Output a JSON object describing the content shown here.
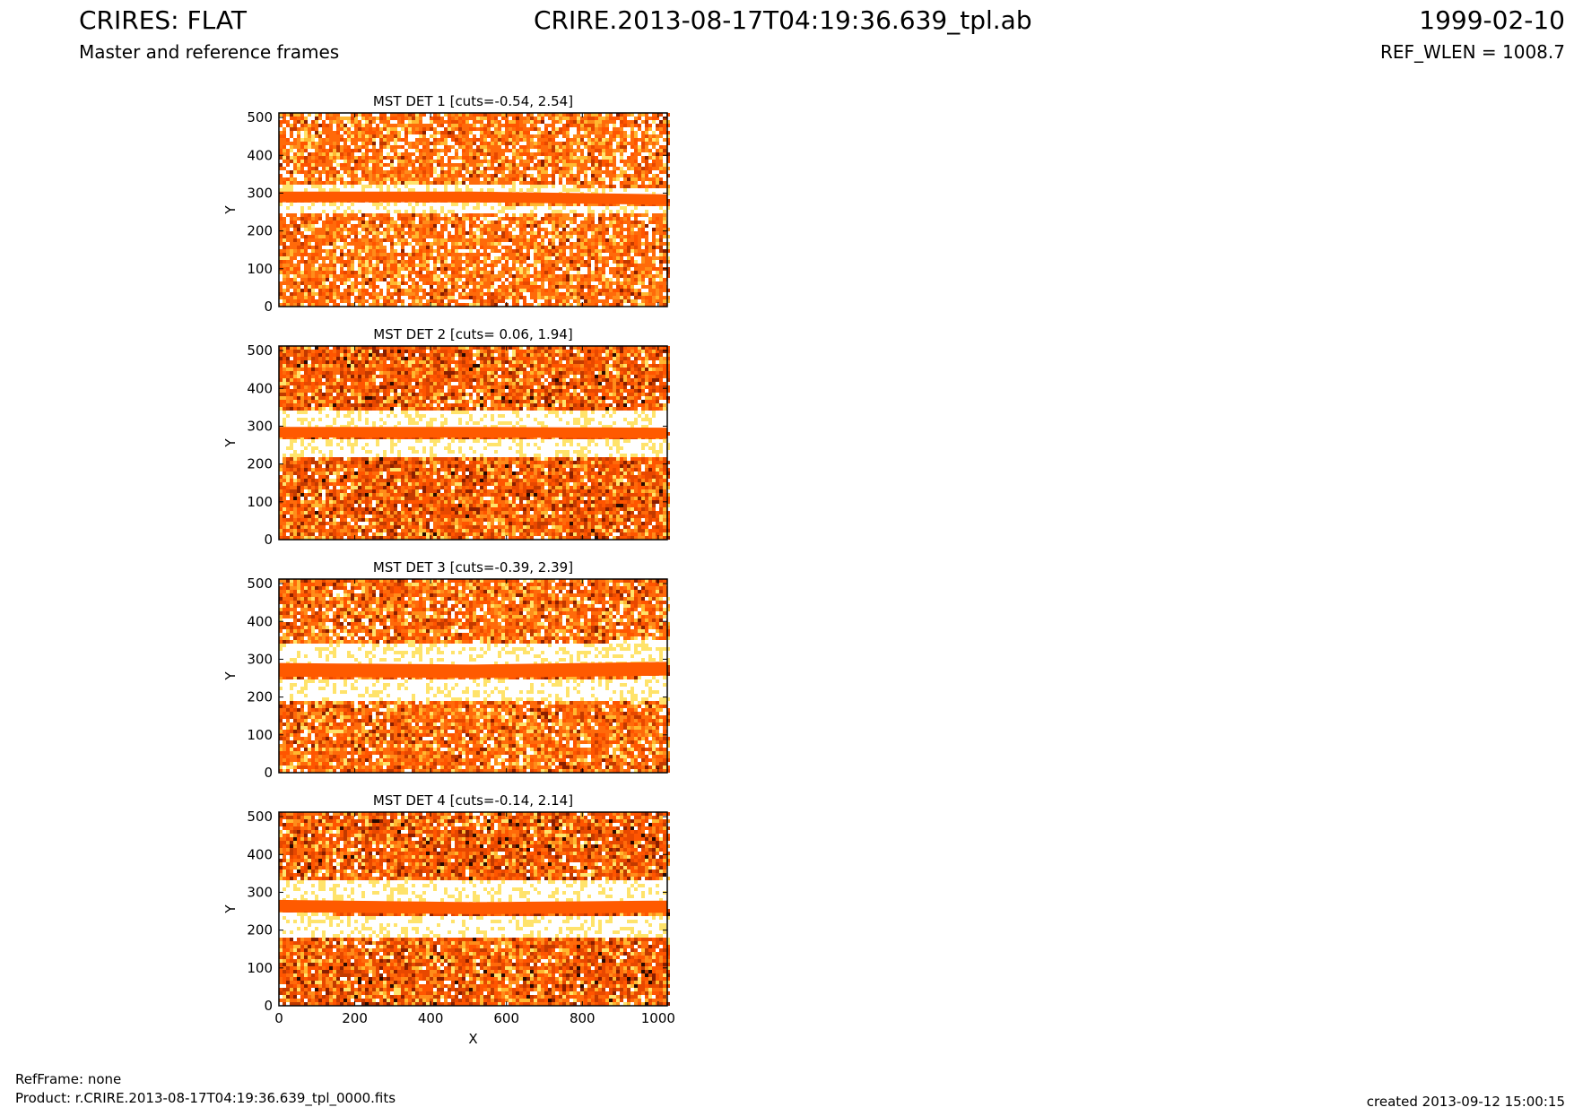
{
  "header": {
    "title": "CRIRES: FLAT",
    "subtitle": "Master and reference frames",
    "filename": "CRIRE.2013-08-17T04:19:36.639_tpl.ab",
    "date": "1999-02-10",
    "ref_wlen": "REF_WLEN = 1008.7"
  },
  "footer": {
    "refframe": "RefFrame: none",
    "product": "Product: r.CRIRE.2013-08-17T04:19:36.639_tpl_0000.fits",
    "created": "created 2013-09-12 15:00:15"
  },
  "colors": {
    "band": "#ff5a00",
    "noise": [
      "#ff6a0a",
      "#ff5500",
      "#e84800",
      "#ff8c1a",
      "#ffb830",
      "#ffe36b",
      "#ffffff",
      "#c23a00",
      "#8a1f00",
      "#2a0a00"
    ]
  },
  "chart_data": [
    {
      "type": "heatmap",
      "title": "MST DET 1 [cuts=-0.54, 2.54]",
      "xlabel": "",
      "ylabel": "Y",
      "xlim": [
        0,
        1024
      ],
      "ylim": [
        0,
        512
      ],
      "xticks": [
        0,
        200,
        400,
        600,
        800,
        1000
      ],
      "yticks": [
        0,
        100,
        200,
        300,
        400,
        500
      ],
      "cuts": [
        -0.54,
        2.54
      ],
      "band_center": [
        290,
        290,
        283
      ],
      "band_halfwidth": 14,
      "halo_halfwidth": 22,
      "texture": "light",
      "show_xticklabels": false
    },
    {
      "type": "heatmap",
      "title": "MST DET 2 [cuts= 0.06, 1.94]",
      "xlabel": "",
      "ylabel": "Y",
      "xlim": [
        0,
        1024
      ],
      "ylim": [
        0,
        512
      ],
      "xticks": [
        0,
        200,
        400,
        600,
        800,
        1000
      ],
      "yticks": [
        0,
        100,
        200,
        300,
        400,
        500
      ],
      "cuts": [
        0.06,
        1.94
      ],
      "band_center": [
        284,
        284,
        282
      ],
      "band_halfwidth": 14,
      "halo_halfwidth": 48,
      "texture": "dark",
      "show_xticklabels": false
    },
    {
      "type": "heatmap",
      "title": "MST DET 3 [cuts=-0.39, 2.39]",
      "xlabel": "",
      "ylabel": "Y",
      "xlim": [
        0,
        1024
      ],
      "ylim": [
        0,
        512
      ],
      "xticks": [
        0,
        200,
        400,
        600,
        800,
        1000
      ],
      "yticks": [
        0,
        100,
        200,
        300,
        400,
        500
      ],
      "cuts": [
        -0.39,
        2.39
      ],
      "band_center": [
        272,
        268,
        275
      ],
      "band_halfwidth": 18,
      "halo_halfwidth": 60,
      "texture": "medium",
      "show_xticklabels": false
    },
    {
      "type": "heatmap",
      "title": "MST DET 4 [cuts=-0.14, 2.14]",
      "xlabel": "X",
      "ylabel": "Y",
      "xlim": [
        0,
        1024
      ],
      "ylim": [
        0,
        512
      ],
      "xticks": [
        0,
        200,
        400,
        600,
        800,
        1000
      ],
      "yticks": [
        0,
        100,
        200,
        300,
        400,
        500
      ],
      "cuts": [
        -0.14,
        2.14
      ],
      "band_center": [
        264,
        258,
        262
      ],
      "band_halfwidth": 16,
      "halo_halfwidth": 60,
      "texture": "dark",
      "show_xticklabels": true
    }
  ]
}
